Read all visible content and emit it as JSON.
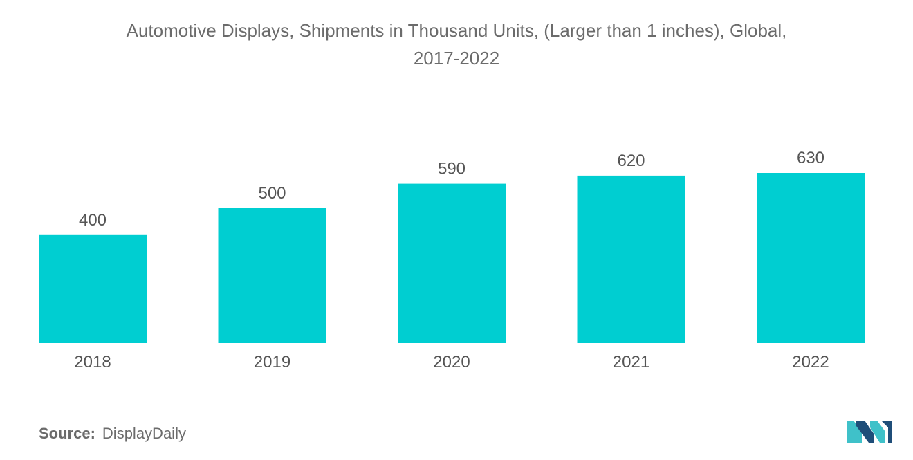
{
  "title_line1": "Automotive Displays, Shipments in Thousand Units, (Larger than 1 inches), Global,",
  "title_line2": "2017-2022",
  "source_label": "Source:",
  "source_value": "DisplayDaily",
  "colors": {
    "bar": "#00CED1",
    "text": "#555555",
    "title": "#6b6b6b",
    "logo_dark": "#1f4e79",
    "logo_teal": "#3fc1c9"
  },
  "chart_data": {
    "type": "bar",
    "title": "Automotive Displays, Shipments in Thousand Units, (Larger than 1 inches), Global, 2017-2022",
    "categories": [
      "2018",
      "2019",
      "2020",
      "2021",
      "2022"
    ],
    "values": [
      400,
      500,
      590,
      620,
      630
    ],
    "data_labels": [
      "400",
      "500",
      "590",
      "620",
      "630"
    ],
    "ylim": [
      0,
      630
    ],
    "grid": false,
    "legend": "none"
  }
}
